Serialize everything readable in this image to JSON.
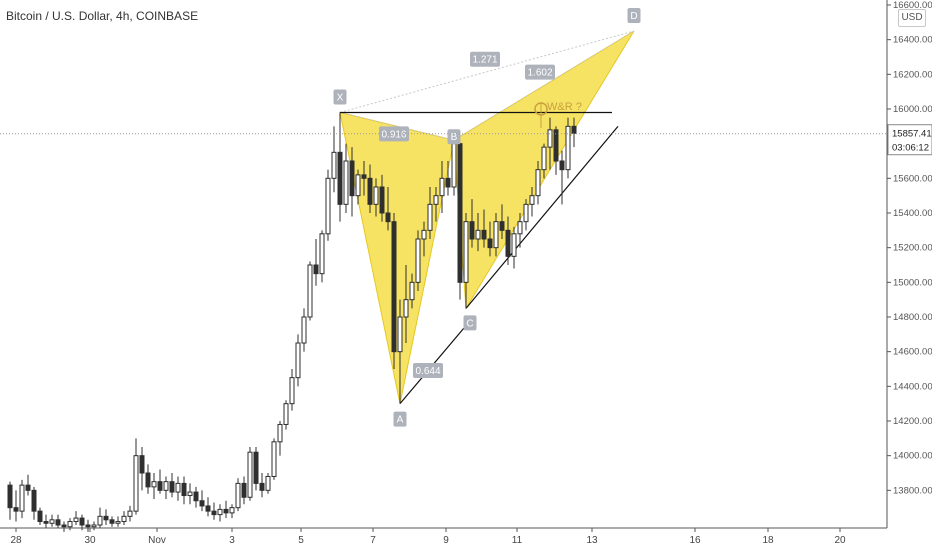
{
  "header": {
    "title": "Bitcoin / U.S. Dollar, 4h, COINBASE",
    "currency": "USD"
  },
  "price_scale": {
    "current_price": "15857.41",
    "countdown": "03:06:12"
  },
  "colors": {
    "bull": "#2f2f2f",
    "bear": "#2f2f2f",
    "pattern_fill": "#f5dc3c",
    "pattern_line": "#e6c820",
    "label_bg": "#aeb2bb",
    "current_price_bg": "#ffffff",
    "annotation": "#c8a040"
  },
  "chart_data": {
    "type": "candlestick",
    "title": "Bitcoin / U.S. Dollar, 4h, COINBASE",
    "xlabel": "",
    "ylabel": "",
    "ylim": [
      13600,
      16600
    ],
    "x_ticks": [
      "28",
      "30",
      "Nov",
      "3",
      "5",
      "7",
      "9",
      "11",
      "13",
      "16",
      "18",
      "20"
    ],
    "y_ticks": [
      13800,
      14000,
      14200,
      14400,
      14600,
      14800,
      15000,
      15200,
      15400,
      15600,
      15800,
      16000,
      16200,
      16400,
      16600
    ],
    "grid": false,
    "pattern": {
      "points": [
        {
          "label": "X",
          "bar": 55,
          "price": 15980
        },
        {
          "label": "A",
          "bar": 65,
          "price": 14300
        },
        {
          "label": "B",
          "bar": 74,
          "price": 15820
        },
        {
          "label": "C",
          "bar": 76,
          "price": 14850
        },
        {
          "label": "D",
          "bar": 104,
          "price": 16450
        }
      ],
      "ratios": [
        {
          "value": "0.916",
          "between": [
            "X",
            "B"
          ]
        },
        {
          "value": "0.644",
          "between": [
            "A",
            "C"
          ]
        },
        {
          "value": "1.271",
          "between": [
            "X",
            "D"
          ]
        },
        {
          "value": "1.602",
          "between": [
            "B",
            "D"
          ]
        }
      ],
      "annotation": "W&R ?",
      "horizontal_level": 15980
    },
    "candles": [
      [
        13830,
        13850,
        13630,
        13700
      ],
      [
        13700,
        13800,
        13620,
        13680
      ],
      [
        13680,
        13860,
        13640,
        13830
      ],
      [
        13830,
        13890,
        13770,
        13800
      ],
      [
        13800,
        13820,
        13630,
        13680
      ],
      [
        13680,
        13700,
        13600,
        13620
      ],
      [
        13620,
        13660,
        13580,
        13610
      ],
      [
        13610,
        13660,
        13590,
        13630
      ],
      [
        13630,
        13660,
        13580,
        13600
      ],
      [
        13600,
        13620,
        13560,
        13590
      ],
      [
        13590,
        13640,
        13570,
        13620
      ],
      [
        13620,
        13680,
        13600,
        13640
      ],
      [
        13640,
        13660,
        13570,
        13600
      ],
      [
        13600,
        13630,
        13560,
        13590
      ],
      [
        13590,
        13620,
        13570,
        13600
      ],
      [
        13600,
        13700,
        13580,
        13650
      ],
      [
        13650,
        13690,
        13600,
        13630
      ],
      [
        13630,
        13650,
        13590,
        13610
      ],
      [
        13610,
        13650,
        13590,
        13620
      ],
      [
        13620,
        13680,
        13600,
        13650
      ],
      [
        13650,
        13710,
        13620,
        13680
      ],
      [
        13680,
        14100,
        13660,
        14000
      ],
      [
        14000,
        14050,
        13800,
        13900
      ],
      [
        13900,
        13950,
        13780,
        13820
      ],
      [
        13820,
        13900,
        13750,
        13850
      ],
      [
        13850,
        13920,
        13780,
        13800
      ],
      [
        13800,
        13880,
        13750,
        13850
      ],
      [
        13850,
        13900,
        13760,
        13790
      ],
      [
        13790,
        13880,
        13740,
        13840
      ],
      [
        13840,
        13880,
        13720,
        13770
      ],
      [
        13770,
        13840,
        13720,
        13790
      ],
      [
        13790,
        13820,
        13700,
        13740
      ],
      [
        13740,
        13800,
        13680,
        13710
      ],
      [
        13710,
        13760,
        13650,
        13680
      ],
      [
        13680,
        13730,
        13630,
        13660
      ],
      [
        13660,
        13720,
        13620,
        13690
      ],
      [
        13690,
        13740,
        13640,
        13670
      ],
      [
        13670,
        13720,
        13640,
        13700
      ],
      [
        13700,
        13870,
        13680,
        13840
      ],
      [
        13840,
        13880,
        13720,
        13760
      ],
      [
        13760,
        14050,
        13740,
        14020
      ],
      [
        14020,
        14050,
        13800,
        13840
      ],
      [
        13840,
        13900,
        13760,
        13800
      ],
      [
        13800,
        13900,
        13780,
        13880
      ],
      [
        13880,
        14100,
        13860,
        14080
      ],
      [
        14080,
        14200,
        14000,
        14180
      ],
      [
        14180,
        14320,
        14150,
        14300
      ],
      [
        14300,
        14500,
        14260,
        14450
      ],
      [
        14450,
        14700,
        14400,
        14650
      ],
      [
        14650,
        14850,
        14600,
        14800
      ],
      [
        14800,
        15120,
        14780,
        15100
      ],
      [
        15100,
        15250,
        14980,
        15050
      ],
      [
        15050,
        15300,
        15000,
        15280
      ],
      [
        15280,
        15650,
        15240,
        15600
      ],
      [
        15600,
        15900,
        15520,
        15750
      ],
      [
        15750,
        15980,
        15350,
        15450
      ],
      [
        15450,
        15800,
        15400,
        15700
      ],
      [
        15700,
        15780,
        15380,
        15500
      ],
      [
        15500,
        15650,
        15450,
        15620
      ],
      [
        15620,
        15700,
        15500,
        15600
      ],
      [
        15600,
        15680,
        15400,
        15450
      ],
      [
        15450,
        15600,
        15380,
        15550
      ],
      [
        15550,
        15620,
        15350,
        15400
      ],
      [
        15400,
        15550,
        15300,
        15350
      ],
      [
        15350,
        15400,
        14500,
        14600
      ],
      [
        14600,
        14900,
        14300,
        14800
      ],
      [
        14800,
        15100,
        14650,
        14900
      ],
      [
        14900,
        15050,
        14850,
        15000
      ],
      [
        15000,
        15300,
        14950,
        15250
      ],
      [
        15250,
        15350,
        15150,
        15300
      ],
      [
        15300,
        15550,
        15250,
        15450
      ],
      [
        15450,
        15550,
        15350,
        15500
      ],
      [
        15500,
        15700,
        15400,
        15600
      ],
      [
        15600,
        15700,
        15500,
        15550
      ],
      [
        15550,
        15820,
        15500,
        15800
      ],
      [
        15800,
        15820,
        14900,
        15000
      ],
      [
        15000,
        15400,
        14850,
        15350
      ],
      [
        15350,
        15480,
        15200,
        15250
      ],
      [
        15250,
        15400,
        15180,
        15300
      ],
      [
        15300,
        15420,
        15200,
        15250
      ],
      [
        15250,
        15350,
        15150,
        15200
      ],
      [
        15200,
        15400,
        15150,
        15350
      ],
      [
        15350,
        15450,
        15250,
        15300
      ],
      [
        15300,
        15380,
        15100,
        15150
      ],
      [
        15150,
        15320,
        15080,
        15280
      ],
      [
        15280,
        15400,
        15200,
        15350
      ],
      [
        15350,
        15480,
        15300,
        15450
      ],
      [
        15450,
        15550,
        15380,
        15500
      ],
      [
        15500,
        15700,
        15450,
        15650
      ],
      [
        15650,
        15800,
        15600,
        15780
      ],
      [
        15780,
        15950,
        15650,
        15880
      ],
      [
        15880,
        15900,
        15620,
        15700
      ],
      [
        15700,
        15760,
        15450,
        15650
      ],
      [
        15650,
        15950,
        15600,
        15900
      ],
      [
        15900,
        15950,
        15780,
        15860
      ]
    ]
  }
}
